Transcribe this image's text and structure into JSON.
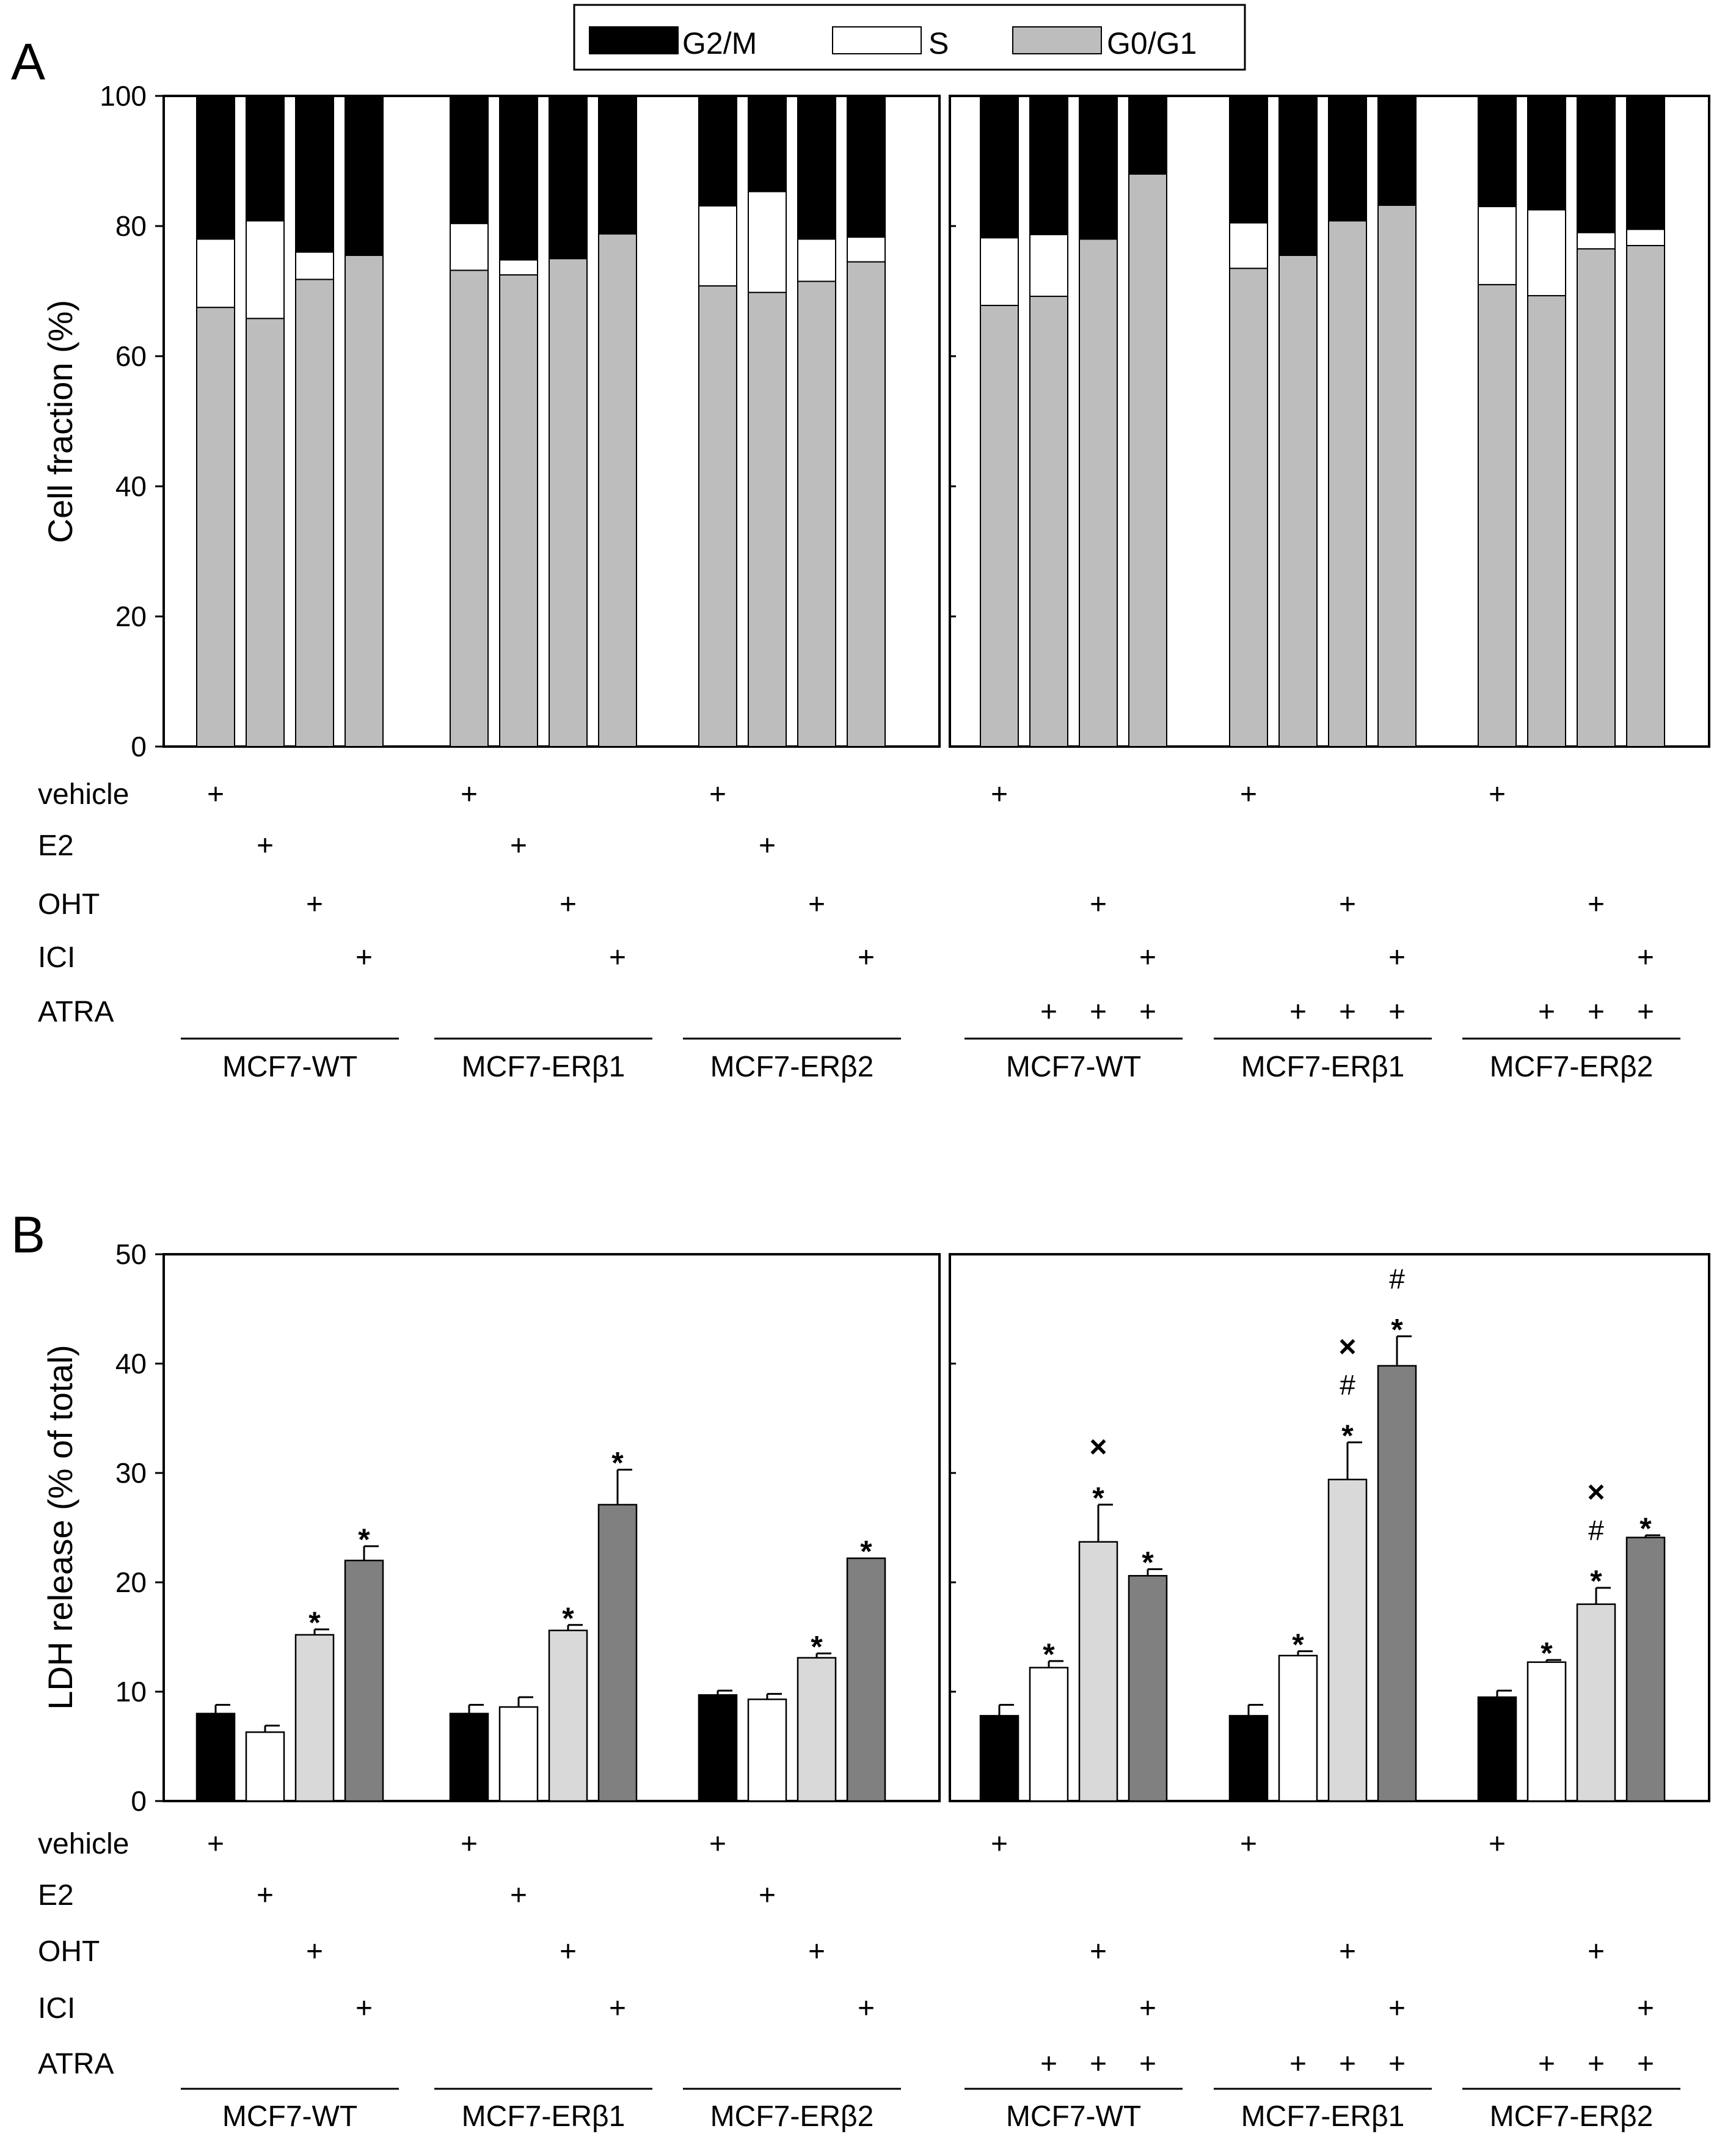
{
  "chart_data": [
    {
      "type": "bar",
      "panel": "A",
      "stacked": true,
      "ylabel": "Cell fraction (%)",
      "ylim": [
        0,
        100
      ],
      "yticks": [
        0,
        20,
        40,
        60,
        80,
        100
      ],
      "legend": {
        "placement": "top-center",
        "items": [
          {
            "name": "G2/M",
            "color": "#000000"
          },
          {
            "name": "S",
            "color": "#ffffff"
          },
          {
            "name": "G0/G1",
            "color": "#bdbdbd"
          }
        ]
      },
      "subpanels": [
        {
          "groups": [
            {
              "label": "MCF7-WT",
              "bars": [
                {
                  "G0/G1": 67.5,
                  "S": 10.5,
                  "G2/M": 22.0
                },
                {
                  "G0/G1": 65.8,
                  "S": 15.0,
                  "G2/M": 19.2
                },
                {
                  "G0/G1": 71.8,
                  "S": 4.2,
                  "G2/M": 24.0
                },
                {
                  "G0/G1": 75.5,
                  "S": 0,
                  "G2/M": 24.5
                }
              ]
            },
            {
              "label": "MCF7-ERβ1",
              "bars": [
                {
                  "G0/G1": 73.2,
                  "S": 7.2,
                  "G2/M": 19.6
                },
                {
                  "G0/G1": 72.5,
                  "S": 2.3,
                  "G2/M": 25.2
                },
                {
                  "G0/G1": 75.0,
                  "S": 0,
                  "G2/M": 25.0
                },
                {
                  "G0/G1": 78.8,
                  "S": 0,
                  "G2/M": 21.2
                }
              ]
            },
            {
              "label": "MCF7-ERβ2",
              "bars": [
                {
                  "G0/G1": 70.8,
                  "S": 12.3,
                  "G2/M": 16.9
                },
                {
                  "G0/G1": 69.8,
                  "S": 15.5,
                  "G2/M": 14.7
                },
                {
                  "G0/G1": 71.5,
                  "S": 6.5,
                  "G2/M": 22.0
                },
                {
                  "G0/G1": 74.5,
                  "S": 3.8,
                  "G2/M": 21.7
                }
              ]
            }
          ],
          "treatments": {
            "vehicle": [
              [
                1,
                0,
                0,
                0
              ],
              [
                1,
                0,
                0,
                0
              ],
              [
                1,
                0,
                0,
                0
              ]
            ],
            "E2": [
              [
                0,
                1,
                0,
                0
              ],
              [
                0,
                1,
                0,
                0
              ],
              [
                0,
                1,
                0,
                0
              ]
            ],
            "OHT": [
              [
                0,
                0,
                1,
                0
              ],
              [
                0,
                0,
                1,
                0
              ],
              [
                0,
                0,
                1,
                0
              ]
            ],
            "ICI": [
              [
                0,
                0,
                0,
                1
              ],
              [
                0,
                0,
                0,
                1
              ],
              [
                0,
                0,
                0,
                1
              ]
            ]
          }
        },
        {
          "groups": [
            {
              "label": "MCF7-WT",
              "bars": [
                {
                  "G0/G1": 67.8,
                  "S": 10.4,
                  "G2/M": 21.8
                },
                {
                  "G0/G1": 69.2,
                  "S": 9.5,
                  "G2/M": 21.3
                },
                {
                  "G0/G1": 78.0,
                  "S": 0,
                  "G2/M": 22.0
                },
                {
                  "G0/G1": 88.0,
                  "S": 0,
                  "G2/M": 12.0
                }
              ]
            },
            {
              "label": "MCF7-ERβ1",
              "bars": [
                {
                  "G0/G1": 73.5,
                  "S": 7.0,
                  "G2/M": 19.5
                },
                {
                  "G0/G1": 75.5,
                  "S": 0,
                  "G2/M": 24.5
                },
                {
                  "G0/G1": 80.8,
                  "S": 0,
                  "G2/M": 19.2
                },
                {
                  "G0/G1": 83.2,
                  "S": 0,
                  "G2/M": 16.8
                }
              ]
            },
            {
              "label": "MCF7-ERβ2",
              "bars": [
                {
                  "G0/G1": 71.0,
                  "S": 12.0,
                  "G2/M": 17.0
                },
                {
                  "G0/G1": 69.3,
                  "S": 13.2,
                  "G2/M": 17.5
                },
                {
                  "G0/G1": 76.5,
                  "S": 2.5,
                  "G2/M": 21.0
                },
                {
                  "G0/G1": 77.0,
                  "S": 2.5,
                  "G2/M": 20.5
                }
              ]
            }
          ],
          "treatments": {
            "vehicle": [
              [
                1,
                0,
                0,
                0
              ],
              [
                1,
                0,
                0,
                0
              ],
              [
                1,
                0,
                0,
                0
              ]
            ],
            "OHT": [
              [
                0,
                0,
                1,
                0
              ],
              [
                0,
                0,
                1,
                0
              ],
              [
                0,
                0,
                1,
                0
              ]
            ],
            "ICI": [
              [
                0,
                0,
                0,
                1
              ],
              [
                0,
                0,
                0,
                1
              ],
              [
                0,
                0,
                0,
                1
              ]
            ],
            "ATRA": [
              [
                0,
                1,
                1,
                1
              ],
              [
                0,
                1,
                1,
                1
              ],
              [
                0,
                1,
                1,
                1
              ]
            ]
          }
        }
      ]
    },
    {
      "type": "bar",
      "panel": "B",
      "ylabel": "LDH release (% of total)",
      "ylim": [
        0,
        50
      ],
      "yticks": [
        0,
        10,
        20,
        30,
        40,
        50
      ],
      "bar_colors": [
        "#000000",
        "#ffffff",
        "#d9d9d9",
        "#808080"
      ],
      "subpanels": [
        {
          "groups": [
            {
              "label": "MCF7-WT",
              "values": [
                8.0,
                6.3,
                15.2,
                22.0
              ],
              "errors": [
                0.8,
                0.6,
                0.5,
                1.3
              ],
              "marks": [
                "",
                "",
                "*",
                "*"
              ]
            },
            {
              "label": "MCF7-ERβ1",
              "values": [
                8.0,
                8.6,
                15.6,
                27.1
              ],
              "errors": [
                0.8,
                0.9,
                0.5,
                3.2
              ],
              "marks": [
                "",
                "",
                "*",
                "*"
              ]
            },
            {
              "label": "MCF7-ERβ2",
              "values": [
                9.7,
                9.3,
                13.1,
                22.2
              ],
              "errors": [
                0.4,
                0.5,
                0.4,
                0.0
              ],
              "marks": [
                "",
                "",
                "*",
                "*"
              ]
            }
          ],
          "treatments": {
            "vehicle": [
              [
                1,
                0,
                0,
                0
              ],
              [
                1,
                0,
                0,
                0
              ],
              [
                1,
                0,
                0,
                0
              ]
            ],
            "E2": [
              [
                0,
                1,
                0,
                0
              ],
              [
                0,
                1,
                0,
                0
              ],
              [
                0,
                1,
                0,
                0
              ]
            ],
            "OHT": [
              [
                0,
                0,
                1,
                0
              ],
              [
                0,
                0,
                1,
                0
              ],
              [
                0,
                0,
                1,
                0
              ]
            ],
            "ICI": [
              [
                0,
                0,
                0,
                1
              ],
              [
                0,
                0,
                0,
                1
              ],
              [
                0,
                0,
                0,
                1
              ]
            ]
          }
        },
        {
          "groups": [
            {
              "label": "MCF7-WT",
              "values": [
                7.8,
                12.2,
                23.7,
                20.6
              ],
              "errors": [
                1.0,
                0.6,
                3.4,
                0.6
              ],
              "marks": [
                "",
                "*",
                "*|×",
                "*"
              ]
            },
            {
              "label": "MCF7-ERβ1",
              "values": [
                7.8,
                13.3,
                29.4,
                39.8
              ],
              "errors": [
                1.0,
                0.4,
                3.4,
                2.7
              ],
              "marks": [
                "",
                "*",
                "*|#|×",
                "*|#"
              ]
            },
            {
              "label": "MCF7-ERβ2",
              "values": [
                9.5,
                12.7,
                18.0,
                24.1
              ],
              "errors": [
                0.6,
                0.2,
                1.5,
                0.2
              ],
              "marks": [
                "",
                "*",
                "*|#|×",
                "*"
              ]
            }
          ],
          "treatments": {
            "vehicle": [
              [
                1,
                0,
                0,
                0
              ],
              [
                1,
                0,
                0,
                0
              ],
              [
                1,
                0,
                0,
                0
              ]
            ],
            "OHT": [
              [
                0,
                0,
                1,
                0
              ],
              [
                0,
                0,
                1,
                0
              ],
              [
                0,
                0,
                1,
                0
              ]
            ],
            "ICI": [
              [
                0,
                0,
                0,
                1
              ],
              [
                0,
                0,
                0,
                1
              ],
              [
                0,
                0,
                0,
                1
              ]
            ],
            "ATRA": [
              [
                0,
                1,
                1,
                1
              ],
              [
                0,
                1,
                1,
                1
              ],
              [
                0,
                1,
                1,
                1
              ]
            ]
          }
        }
      ]
    }
  ],
  "panel_labels": [
    "A",
    "B"
  ],
  "row_labels": [
    "vehicle",
    "E2",
    "OHT",
    "ICI",
    "ATRA"
  ],
  "plus_symbol": "+"
}
